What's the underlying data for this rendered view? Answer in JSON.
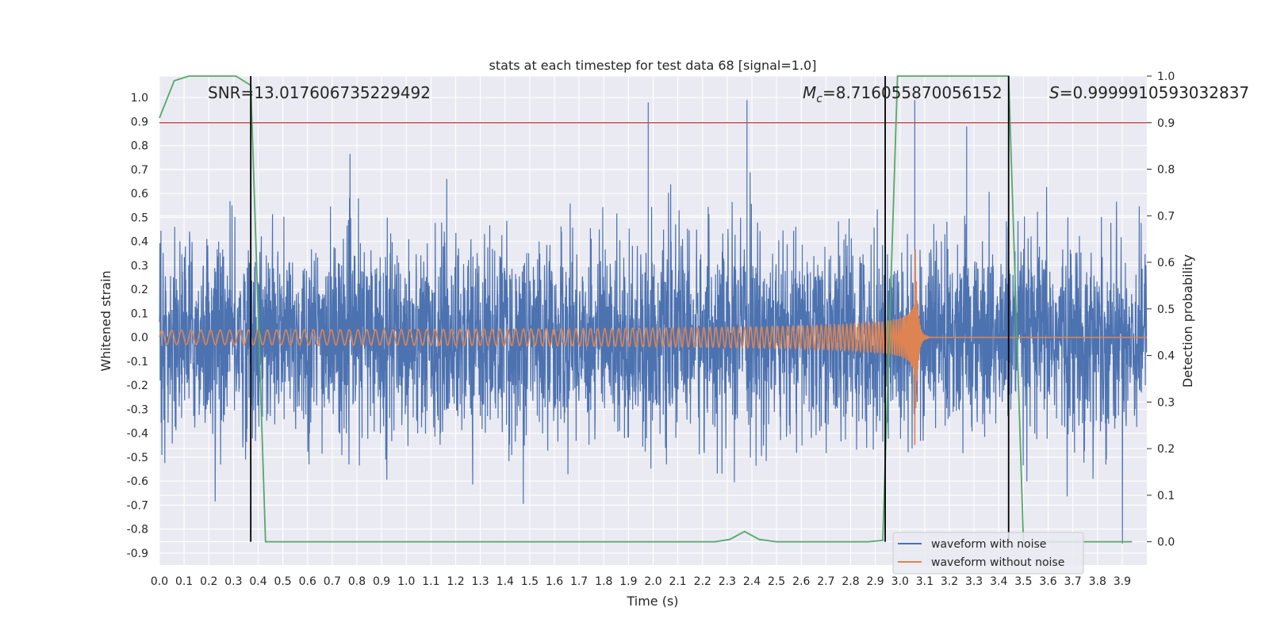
{
  "chart_data": {
    "type": "line",
    "title": "stats at each timestep for test data 68 [signal=1.0]",
    "xlabel": "Time (s)",
    "ylabel": "Whitened strain",
    "y2label": "Detection probability",
    "xlim": [
      0.0,
      4.0
    ],
    "ylim": [
      -0.95,
      1.09
    ],
    "y2lim": [
      -0.05,
      1.0
    ],
    "x_ticks": [
      0.0,
      0.1,
      0.2,
      0.3,
      0.4,
      0.5,
      0.6,
      0.7,
      0.8,
      0.9,
      1.0,
      1.1,
      1.2,
      1.3,
      1.4,
      1.5,
      1.6,
      1.7,
      1.8,
      1.9,
      2.0,
      2.1,
      2.2,
      2.3,
      2.4,
      2.5,
      2.6,
      2.7,
      2.8,
      2.9,
      3.0,
      3.1,
      3.2,
      3.3,
      3.4,
      3.5,
      3.6,
      3.7,
      3.8,
      3.9
    ],
    "x_tick_labels": [
      "0.0",
      "0.1",
      "0.2",
      "0.3",
      "0.4",
      "0.5",
      "0.6",
      "0.7",
      "0.8",
      "0.9",
      "1.0",
      "1.1",
      "1.2",
      "1.3",
      "1.4",
      "1.5",
      "1.6",
      "1.7",
      "1.8",
      "1.9",
      "2.0",
      "2.1",
      "2.2",
      "2.3",
      "2.4",
      "2.5",
      "2.6",
      "2.7",
      "2.8",
      "2.9",
      "3.0",
      "3.1",
      "3.2",
      "3.3",
      "3.4",
      "3.5",
      "3.6",
      "3.7",
      "3.8",
      "3.9"
    ],
    "y_ticks": [
      1.0,
      0.9,
      0.8,
      0.7,
      0.6,
      0.5,
      0.4,
      0.3,
      0.2,
      0.1,
      0.0,
      -0.1,
      -0.2,
      -0.3,
      -0.4,
      -0.5,
      -0.6,
      -0.7,
      -0.8,
      -0.9
    ],
    "y_tick_labels": [
      "1.0",
      "0.9",
      "0.8",
      "0.7",
      "0.6",
      "0.5",
      "0.4",
      "0.3",
      "0.2",
      "0.1",
      "0.0",
      "-0.1",
      "-0.2",
      "-0.3",
      "-0.4",
      "-0.5",
      "-0.6",
      "-0.7",
      "-0.8",
      "-0.9"
    ],
    "y2_ticks": [
      1.0,
      0.9,
      0.8,
      0.7,
      0.6,
      0.5,
      0.4,
      0.3,
      0.2,
      0.1,
      0.0
    ],
    "y2_tick_labels": [
      "1.0",
      "0.9",
      "0.8",
      "0.7",
      "0.6",
      "0.5",
      "0.4",
      "0.3",
      "0.2",
      "0.1",
      "0.0"
    ],
    "series": [
      {
        "name": "waveform with noise",
        "color": "#4c72b0",
        "axis": "left",
        "description": "dense noisy strain, typical amplitude about 0.4, spikes up to 1.0 near t=1.98, 2.38, 3.06"
      },
      {
        "name": "waveform without noise",
        "color": "#dd8452",
        "axis": "left",
        "chirp": {
          "start": 0.0,
          "merger": 3.06,
          "amp_start": 0.03,
          "amp_peak": 0.45,
          "freq_start": 25,
          "ringdown_end": 3.1
        }
      },
      {
        "name": "detection probability",
        "color": "#55a868",
        "axis": "right",
        "x": [
          0.0,
          0.06,
          0.12,
          0.18,
          0.24,
          0.31,
          0.37,
          0.43,
          0.5,
          0.6,
          0.8,
          1.0,
          1.2,
          1.4,
          1.6,
          1.8,
          2.0,
          2.2,
          2.25,
          2.31,
          2.37,
          2.43,
          2.5,
          2.6,
          2.8,
          2.87,
          2.93,
          2.99,
          3.06,
          3.12,
          3.2,
          3.3,
          3.4,
          3.44,
          3.5,
          3.6,
          3.8,
          3.94
        ],
        "y": [
          0.91,
          0.99,
          1.0,
          1.0,
          1.0,
          1.0,
          0.98,
          0.0,
          0.0,
          0.0,
          0.0,
          0.0,
          0.0,
          0.0,
          0.0,
          0.0,
          0.0,
          0.0,
          0.0,
          0.005,
          0.022,
          0.005,
          0.0,
          0.0,
          0.0,
          0.0,
          0.003,
          1.0,
          1.0,
          1.0,
          1.0,
          1.0,
          1.0,
          1.0,
          0.0,
          0.0,
          0.0,
          0.0
        ]
      },
      {
        "name": "threshold",
        "color": "#c44e52",
        "axis": "right",
        "y": 0.9
      }
    ],
    "vertical_lines": {
      "x": [
        0.37,
        2.94,
        3.44
      ],
      "color": "#000000"
    },
    "annotations": [
      {
        "text": "SNR=13.017606735229492",
        "x": 0.2,
        "y": 1.0
      },
      {
        "math": "Mc",
        "text": "=8.716055870056152",
        "x": 2.6,
        "y": 1.0
      },
      {
        "math": "S",
        "text": "=0.9999910593032837",
        "x": 3.6,
        "y": 1.0
      }
    ],
    "legend": {
      "position": "lower-right",
      "items": [
        {
          "label": "waveform with noise",
          "color": "#4c72b0"
        },
        {
          "label": "waveform without noise",
          "color": "#dd8452"
        }
      ]
    }
  }
}
